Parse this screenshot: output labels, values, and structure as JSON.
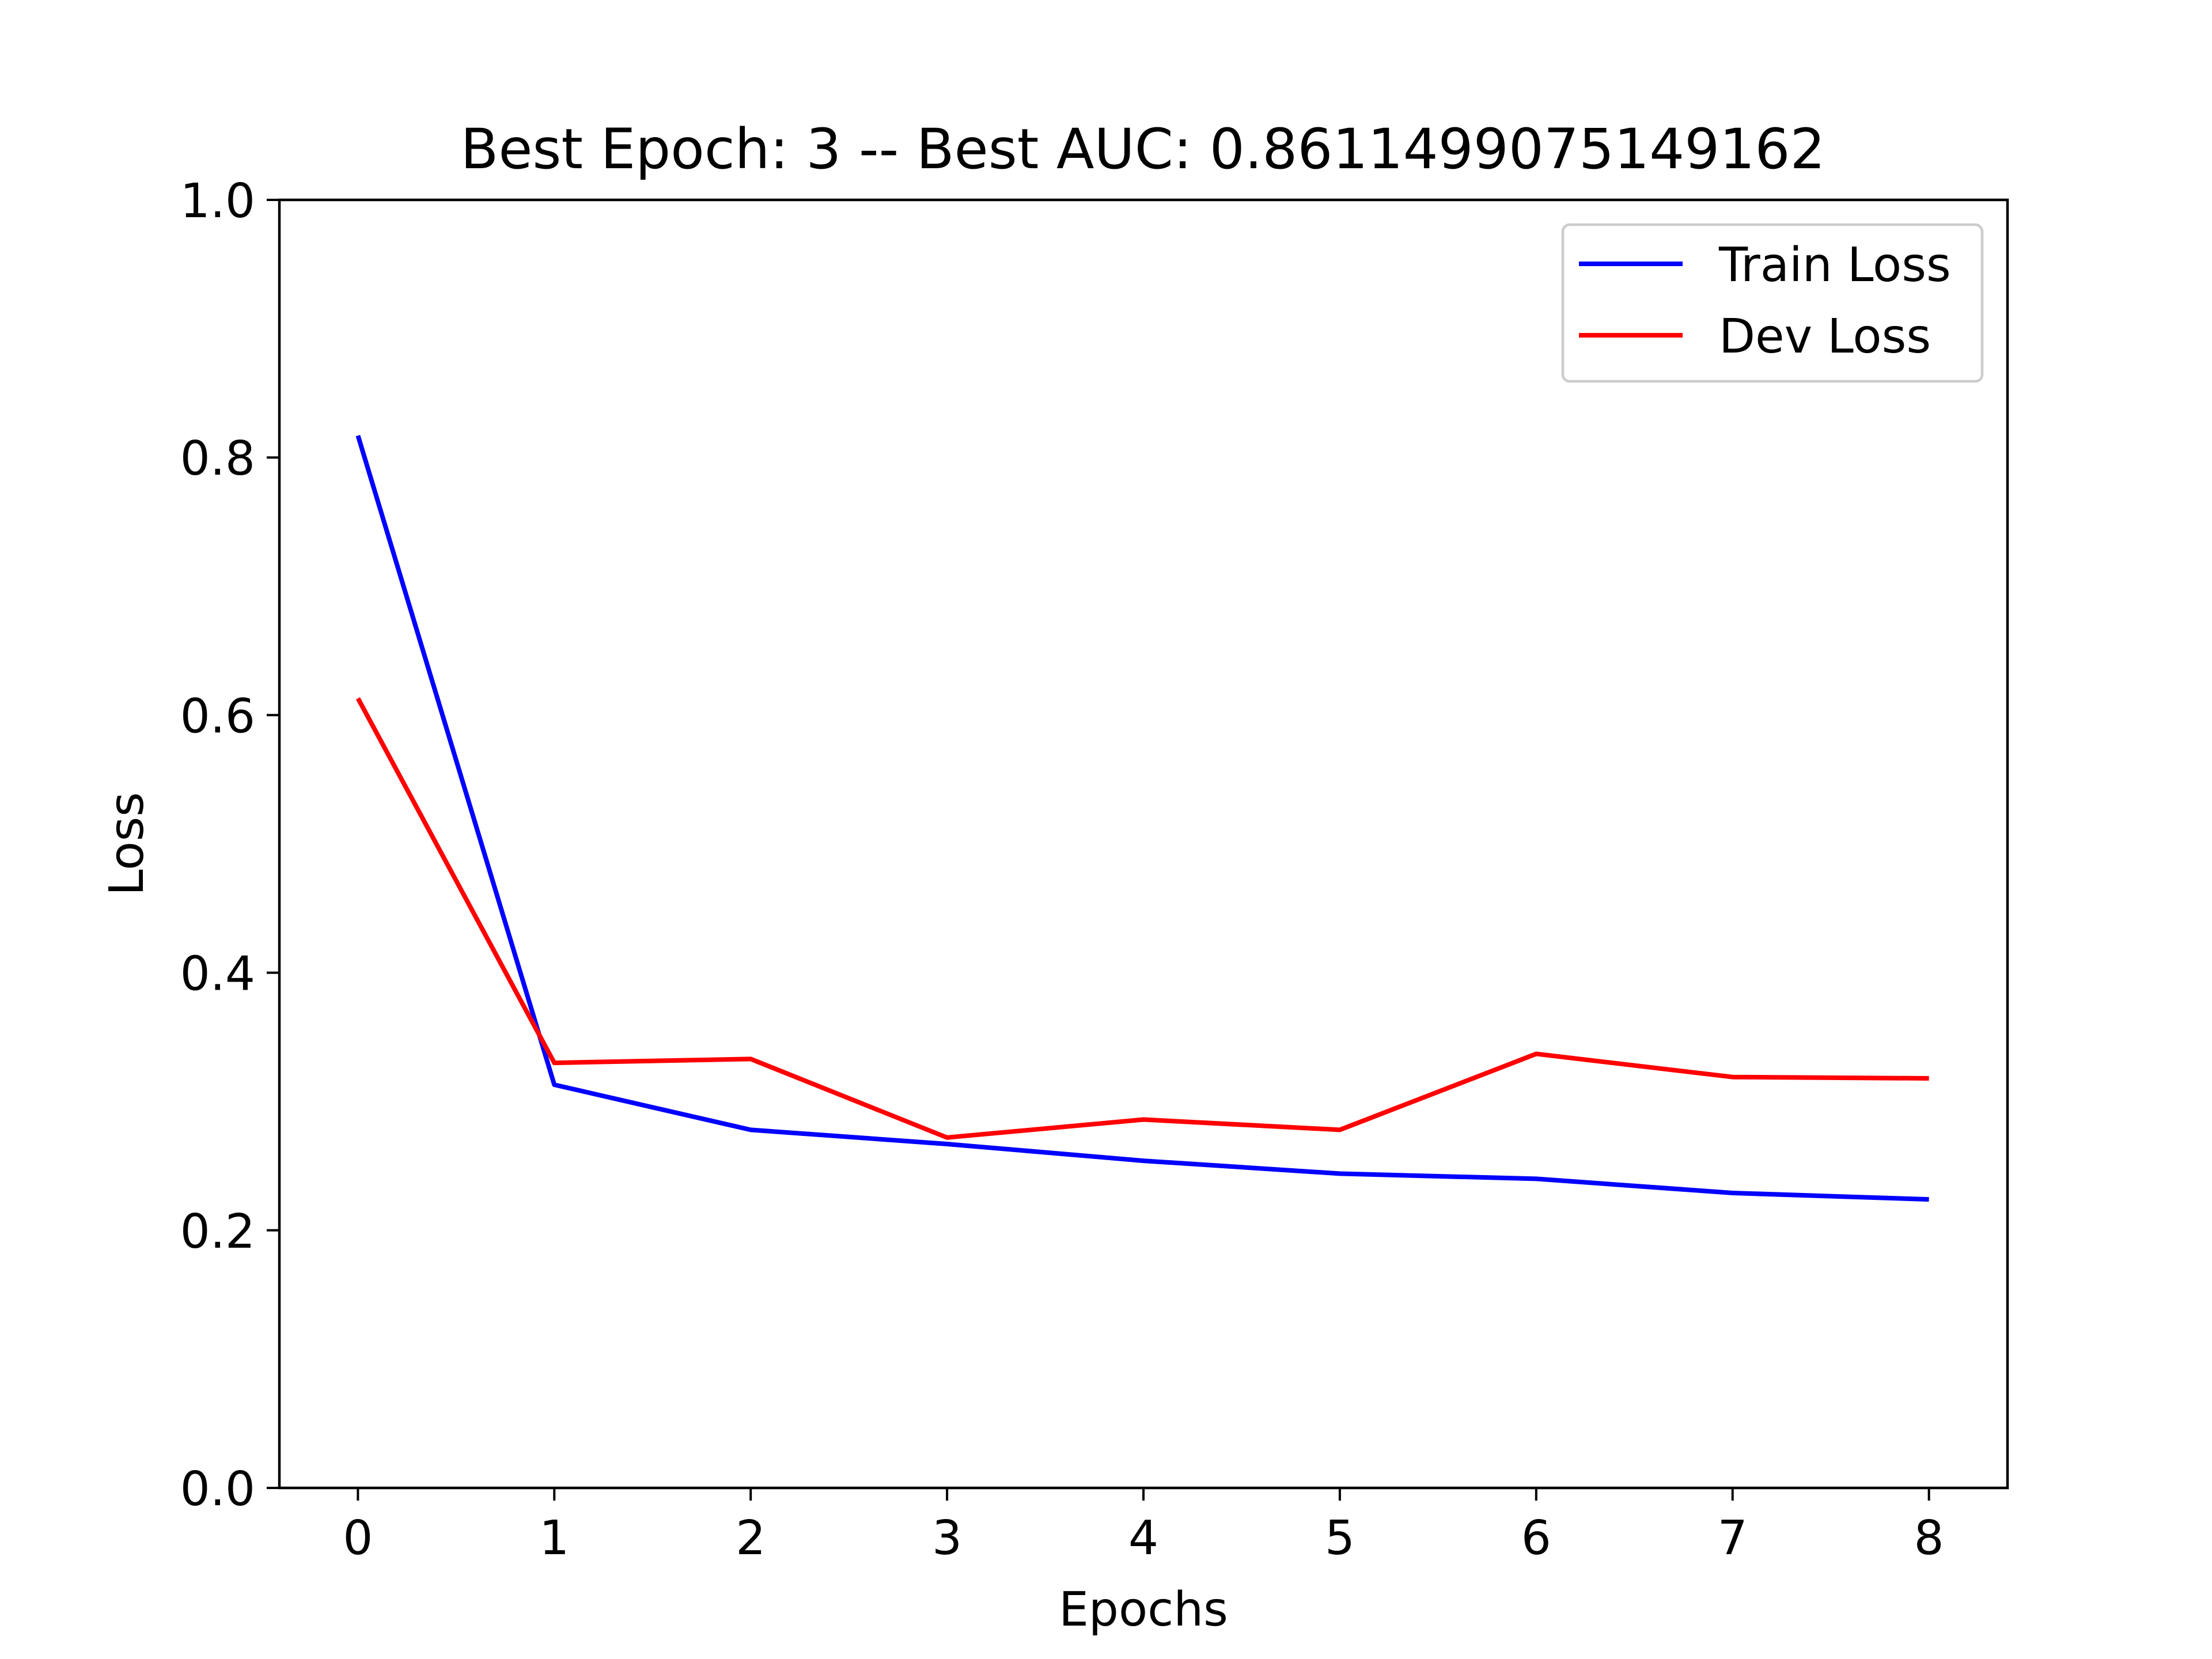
{
  "chart_data": {
    "type": "line",
    "title": "Best Epoch: 3 -- Best AUC: 0.8611499075149162",
    "xlabel": "Epochs",
    "ylabel": "Loss",
    "x": [
      0,
      1,
      2,
      3,
      4,
      5,
      6,
      7,
      8
    ],
    "xlim": [
      -0.4,
      8.4
    ],
    "ylim": [
      0.0,
      1.0
    ],
    "xticks": [
      "0",
      "1",
      "2",
      "3",
      "4",
      "5",
      "6",
      "7",
      "8"
    ],
    "yticks": [
      "0.0",
      "0.2",
      "0.4",
      "0.6",
      "0.8",
      "1.0"
    ],
    "grid": false,
    "legend_position": "top-right",
    "series": [
      {
        "name": "Train Loss",
        "color": "#0000ff",
        "values": [
          0.817,
          0.313,
          0.278,
          0.267,
          0.254,
          0.244,
          0.24,
          0.229,
          0.224
        ]
      },
      {
        "name": "Dev Loss",
        "color": "#ff0000",
        "values": [
          0.613,
          0.33,
          0.333,
          0.272,
          0.286,
          0.278,
          0.337,
          0.319,
          0.318
        ]
      }
    ]
  }
}
